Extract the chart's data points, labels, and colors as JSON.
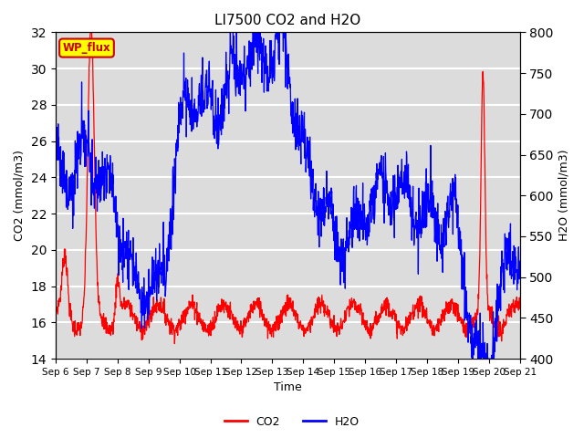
{
  "title": "LI7500 CO2 and H2O",
  "xlabel": "Time",
  "ylabel_left": "CO2 (mmol/m3)",
  "ylabel_right": "H2O (mmol/m3)",
  "ylim_left": [
    14,
    32
  ],
  "ylim_right": [
    400,
    800
  ],
  "yticks_left": [
    14,
    16,
    18,
    20,
    22,
    24,
    26,
    28,
    30,
    32
  ],
  "yticks_right": [
    400,
    450,
    500,
    550,
    600,
    650,
    700,
    750,
    800
  ],
  "xtick_labels": [
    "Sep 6",
    "Sep 7",
    "Sep 8",
    "Sep 9",
    "Sep 10",
    "Sep 11",
    "Sep 12",
    "Sep 13",
    "Sep 14",
    "Sep 15",
    "Sep 16",
    "Sep 17",
    "Sep 18",
    "Sep 19",
    "Sep 20",
    "Sep 21"
  ],
  "legend_labels": [
    "CO2",
    "H2O"
  ],
  "co2_color": "#ff0000",
  "h2o_color": "#0000ff",
  "annotation_text": "WP_flux",
  "annotation_color": "#cc0000",
  "annotation_bg": "#ffff00",
  "background_color": "#dcdcdc",
  "grid_color": "#ffffff",
  "n_points": 1500,
  "seed": 7
}
